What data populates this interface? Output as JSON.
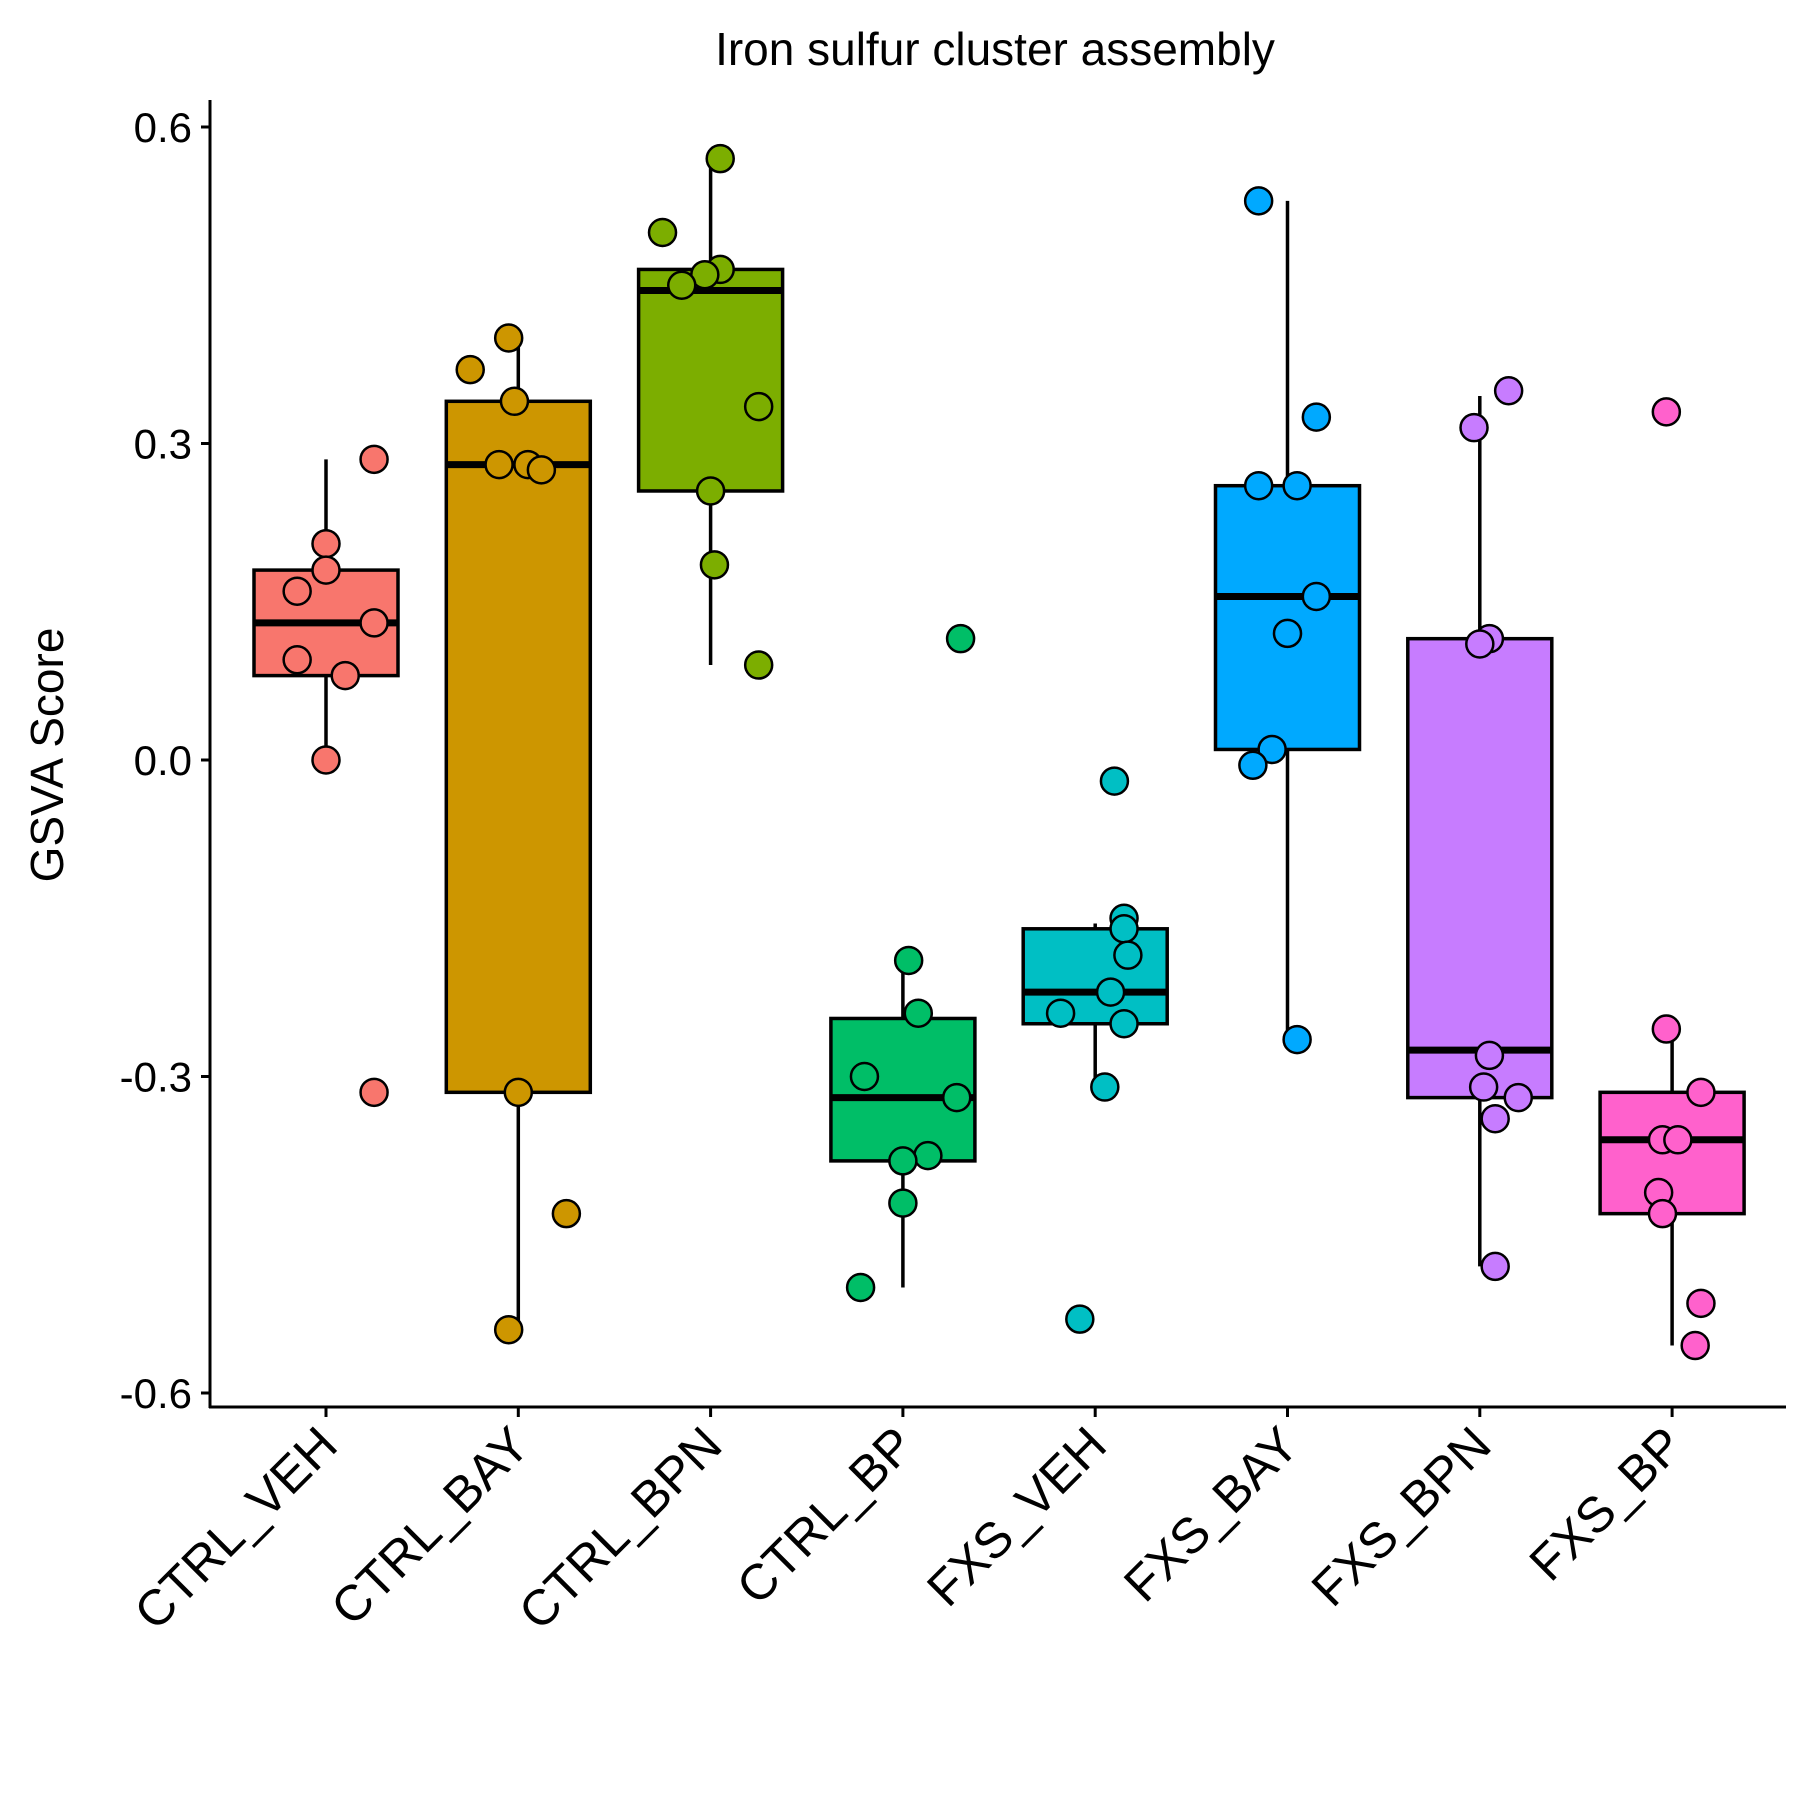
{
  "chart_data": {
    "type": "box",
    "title": "Iron sulfur cluster assembly",
    "xlabel": "",
    "ylabel": "GSVA Score",
    "ylim": [
      -0.61,
      0.62
    ],
    "y_ticks": [
      0.6,
      0.3,
      0.0,
      -0.3,
      -0.6
    ],
    "y_tick_labels": [
      "0.6",
      "0.3",
      "0.0",
      "-0.3",
      "-0.6"
    ],
    "categories": [
      "CTRL_VEH",
      "CTRL_BAY",
      "CTRL_BPN",
      "CTRL_BP",
      "FXS_VEH",
      "FXS_BAY",
      "FXS_BPN",
      "FXS_BP"
    ],
    "grid": false,
    "legend": "none",
    "series": [
      {
        "category": "CTRL_VEH",
        "color": "#F8766D",
        "whisker_low": 0.0,
        "q1": 0.08,
        "median": 0.13,
        "q3": 0.18,
        "whisker_high": 0.285,
        "points": [
          {
            "dx": 0.25,
            "y": 0.285
          },
          {
            "dx": 0.0,
            "y": 0.205
          },
          {
            "dx": 0.0,
            "y": 0.18
          },
          {
            "dx": -0.15,
            "y": 0.16
          },
          {
            "dx": 0.25,
            "y": 0.13
          },
          {
            "dx": -0.15,
            "y": 0.095
          },
          {
            "dx": 0.1,
            "y": 0.08
          },
          {
            "dx": 0.0,
            "y": 0.0
          },
          {
            "dx": 0.25,
            "y": -0.315
          }
        ]
      },
      {
        "category": "CTRL_BAY",
        "color": "#CD9600",
        "whisker_low": -0.54,
        "q1": -0.315,
        "median": 0.28,
        "q3": 0.34,
        "whisker_high": 0.4,
        "points": [
          {
            "dx": -0.05,
            "y": 0.4
          },
          {
            "dx": -0.25,
            "y": 0.37
          },
          {
            "dx": -0.02,
            "y": 0.34
          },
          {
            "dx": -0.1,
            "y": 0.28
          },
          {
            "dx": 0.05,
            "y": 0.28
          },
          {
            "dx": 0.12,
            "y": 0.275
          },
          {
            "dx": 0.0,
            "y": -0.315
          },
          {
            "dx": 0.25,
            "y": -0.43
          },
          {
            "dx": -0.05,
            "y": -0.54
          }
        ]
      },
      {
        "category": "CTRL_BPN",
        "color": "#7CAE00",
        "whisker_low": 0.09,
        "q1": 0.255,
        "median": 0.445,
        "q3": 0.465,
        "whisker_high": 0.57,
        "points": [
          {
            "dx": 0.05,
            "y": 0.57
          },
          {
            "dx": -0.25,
            "y": 0.5
          },
          {
            "dx": 0.05,
            "y": 0.465
          },
          {
            "dx": -0.03,
            "y": 0.46
          },
          {
            "dx": -0.15,
            "y": 0.45
          },
          {
            "dx": 0.25,
            "y": 0.335
          },
          {
            "dx": 0.0,
            "y": 0.255
          },
          {
            "dx": 0.02,
            "y": 0.185
          },
          {
            "dx": 0.25,
            "y": 0.09
          }
        ]
      },
      {
        "category": "CTRL_BP",
        "color": "#00BE67",
        "whisker_low": -0.5,
        "q1": -0.38,
        "median": -0.32,
        "q3": -0.245,
        "whisker_high": -0.19,
        "points": [
          {
            "dx": 0.3,
            "y": 0.115
          },
          {
            "dx": 0.03,
            "y": -0.19
          },
          {
            "dx": 0.08,
            "y": -0.24
          },
          {
            "dx": -0.2,
            "y": -0.3
          },
          {
            "dx": 0.28,
            "y": -0.32
          },
          {
            "dx": 0.13,
            "y": -0.375
          },
          {
            "dx": 0.0,
            "y": -0.38
          },
          {
            "dx": 0.0,
            "y": -0.42
          },
          {
            "dx": -0.22,
            "y": -0.5
          }
        ]
      },
      {
        "category": "FXS_VEH",
        "color": "#00BFC4",
        "whisker_low": -0.315,
        "q1": -0.25,
        "median": -0.22,
        "q3": -0.16,
        "whisker_high": -0.155,
        "points": [
          {
            "dx": 0.1,
            "y": -0.02
          },
          {
            "dx": 0.15,
            "y": -0.15
          },
          {
            "dx": 0.15,
            "y": -0.16
          },
          {
            "dx": 0.17,
            "y": -0.185
          },
          {
            "dx": 0.08,
            "y": -0.22
          },
          {
            "dx": -0.18,
            "y": -0.24
          },
          {
            "dx": 0.15,
            "y": -0.25
          },
          {
            "dx": 0.05,
            "y": -0.31
          },
          {
            "dx": -0.08,
            "y": -0.53
          }
        ]
      },
      {
        "category": "FXS_BAY",
        "color": "#00A9FF",
        "whisker_low": -0.265,
        "q1": 0.01,
        "median": 0.155,
        "q3": 0.26,
        "whisker_high": 0.53,
        "points": [
          {
            "dx": -0.15,
            "y": 0.53
          },
          {
            "dx": 0.15,
            "y": 0.325
          },
          {
            "dx": -0.15,
            "y": 0.26
          },
          {
            "dx": 0.05,
            "y": 0.26
          },
          {
            "dx": 0.15,
            "y": 0.155
          },
          {
            "dx": 0.0,
            "y": 0.12
          },
          {
            "dx": -0.08,
            "y": 0.01
          },
          {
            "dx": -0.18,
            "y": -0.005
          },
          {
            "dx": 0.05,
            "y": -0.265
          }
        ]
      },
      {
        "category": "FXS_BPN",
        "color": "#C77CFF",
        "whisker_low": -0.48,
        "q1": -0.32,
        "median": -0.275,
        "q3": 0.115,
        "whisker_high": 0.345,
        "points": [
          {
            "dx": 0.15,
            "y": 0.35
          },
          {
            "dx": -0.03,
            "y": 0.315
          },
          {
            "dx": 0.05,
            "y": 0.115
          },
          {
            "dx": 0.0,
            "y": 0.11
          },
          {
            "dx": 0.05,
            "y": -0.28
          },
          {
            "dx": 0.02,
            "y": -0.31
          },
          {
            "dx": 0.2,
            "y": -0.32
          },
          {
            "dx": 0.08,
            "y": -0.34
          },
          {
            "dx": 0.08,
            "y": -0.48
          }
        ]
      },
      {
        "category": "FXS_BP",
        "color": "#FF61CC",
        "whisker_low": -0.555,
        "q1": -0.43,
        "median": -0.36,
        "q3": -0.315,
        "whisker_high": -0.255,
        "points": [
          {
            "dx": -0.03,
            "y": 0.33
          },
          {
            "dx": -0.03,
            "y": -0.255
          },
          {
            "dx": 0.15,
            "y": -0.315
          },
          {
            "dx": -0.05,
            "y": -0.36
          },
          {
            "dx": 0.03,
            "y": -0.36
          },
          {
            "dx": -0.07,
            "y": -0.41
          },
          {
            "dx": -0.05,
            "y": -0.43
          },
          {
            "dx": 0.15,
            "y": -0.515
          },
          {
            "dx": 0.12,
            "y": -0.555
          }
        ]
      }
    ]
  }
}
